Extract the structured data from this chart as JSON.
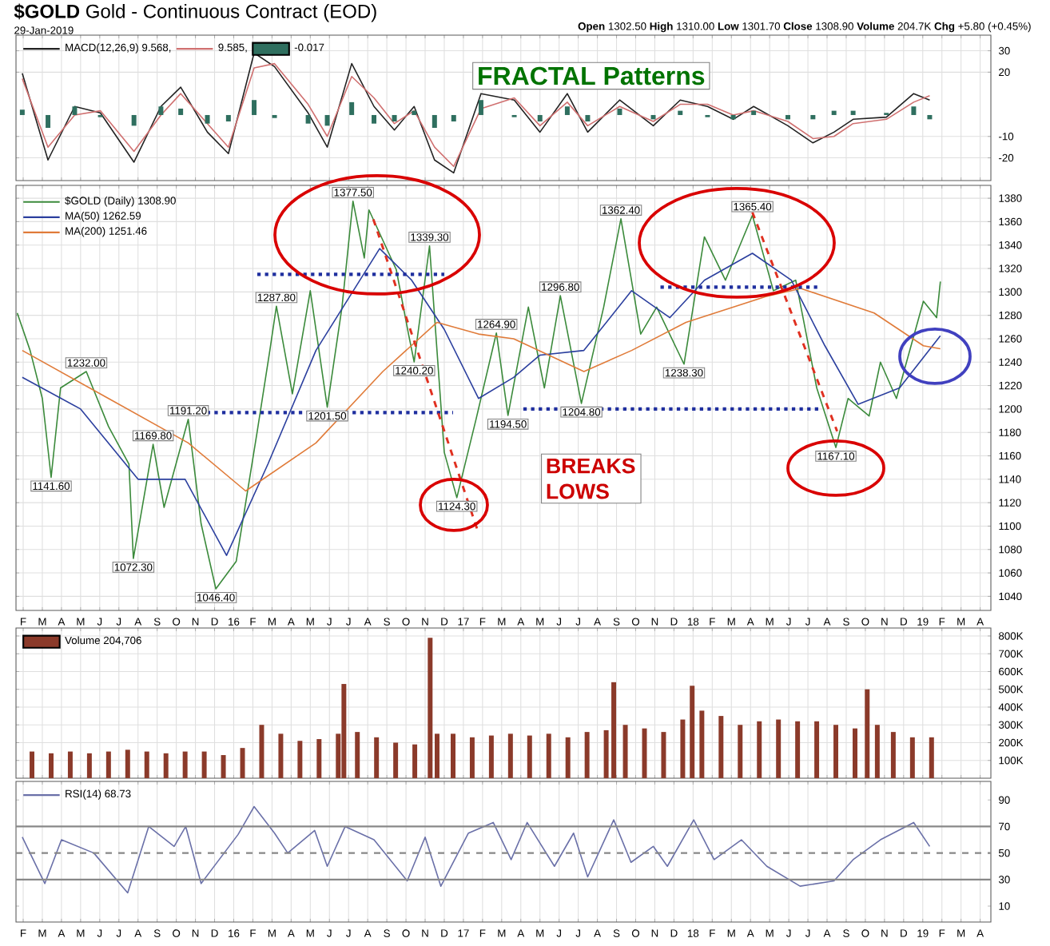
{
  "chart_data": [
    {
      "type": "line",
      "title": "**$GOLD** Gold - Continuous Contract (EOD)",
      "subtitle": "29-Jan-2019",
      "annotations": [
        "FRACTAL Patterns",
        "**Open** 1302.50 **High** 1310.00 **Low** 1301.70 **Close** 1308.90 **Volume** 204.7K **Chg** +5.80 (+0.45%)"
      ],
      "xlim": [
        "2015-01-20",
        "2019-04-18"
      ],
      "ylim": [
        -30.6,
        37.3
      ],
      "yticks": [
        30,
        20,
        -10,
        -20
      ],
      "grid": true,
      "legend": "top left",
      "tick_labels": "y",
      "xticks": [
        "2015-02",
        "2015-03",
        "2015-04",
        "2015-05",
        "2015-06",
        "2015-07",
        "2015-08",
        "2015-09",
        "2015-10",
        "2015-11",
        "2015-12",
        "2016-01",
        "2016-02",
        "2016-03",
        "2016-04",
        "2016-05",
        "2016-06",
        "2016-07",
        "2016-08",
        "2016-09",
        "2016-10",
        "2016-11",
        "2016-12",
        "2017-01",
        "2017-02",
        "2017-03",
        "2017-04",
        "2017-05",
        "2017-06",
        "2017-07",
        "2017-08",
        "2017-09",
        "2017-10",
        "2017-11",
        "2017-12",
        "2018-01",
        "2018-02",
        "2018-03",
        "2018-04",
        "2018-05",
        "2018-06",
        "2018-07",
        "2018-08",
        "2018-09",
        "2018-10",
        "2018-11",
        "2018-12",
        "2019-01",
        "2019-02",
        "2019-03",
        "2019-04"
      ],
      "series": [
        {
          "name": "MACD(12,26,9) 9.568,",
          "color": "#222222",
          "x": [
            "2015-01-30",
            "2015-03-10",
            "2015-04-22",
            "2015-06-02",
            "2015-07-25",
            "2015-09-07",
            "2015-10-08",
            "2015-11-20",
            "2015-12-23",
            "2016-02-03",
            "2016-03-05",
            "2016-04-28",
            "2016-05-28",
            "2016-07-06",
            "2016-08-11",
            "2016-09-13",
            "2016-10-14",
            "2016-11-16",
            "2016-12-16",
            "2017-01-29",
            "2017-03-21",
            "2017-05-01",
            "2017-06-14",
            "2017-07-16",
            "2017-09-06",
            "2017-10-29",
            "2017-12-11",
            "2018-01-24",
            "2018-03-04",
            "2018-04-06",
            "2018-05-30",
            "2018-07-09",
            "2018-08-12",
            "2018-09-12",
            "2018-11-04",
            "2018-12-17",
            "2019-01-12"
          ],
          "values": [
            19.5,
            -21,
            4,
            1,
            -22,
            4,
            13,
            -8,
            -18,
            29,
            22.6,
            1,
            -15,
            24,
            4,
            -7,
            4,
            -21,
            -27,
            10,
            7,
            -8,
            10,
            -8,
            7,
            -5,
            7,
            4,
            -2,
            4,
            -5,
            -13,
            -8,
            -2,
            -1,
            10,
            7
          ]
        },
        {
          "name": "9.585,",
          "color": "#d07070",
          "x": [
            "2015-01-30",
            "2015-03-10",
            "2015-04-22",
            "2015-06-02",
            "2015-07-25",
            "2015-09-07",
            "2015-10-08",
            "2015-11-20",
            "2015-12-23",
            "2016-02-03",
            "2016-03-05",
            "2016-04-28",
            "2016-05-28",
            "2016-07-06",
            "2016-08-11",
            "2016-09-13",
            "2016-10-14",
            "2016-11-16",
            "2016-12-16",
            "2017-01-29",
            "2017-03-21",
            "2017-05-01",
            "2017-06-14",
            "2017-07-16",
            "2017-09-06",
            "2017-10-29",
            "2017-12-11",
            "2018-01-24",
            "2018-03-04",
            "2018-04-06",
            "2018-05-30",
            "2018-07-09",
            "2018-08-12",
            "2018-09-12",
            "2018-11-04",
            "2018-12-17",
            "2019-01-12"
          ],
          "values": [
            17,
            -15,
            0,
            2,
            -17,
            0,
            10,
            -4,
            -15,
            22,
            24,
            5,
            -10,
            18,
            8,
            -4,
            2,
            -15,
            -24,
            3,
            8,
            -5,
            6,
            -5,
            4,
            -3,
            5,
            5,
            0,
            2,
            -3,
            -11,
            -10,
            -4,
            -2,
            6,
            9
          ]
        },
        {
          "name": "-0.017",
          "type": "bar",
          "color": "#2f6f5f",
          "x": [
            "2015-01-30",
            "2015-03-10",
            "2015-04-22",
            "2015-06-02",
            "2015-07-25",
            "2015-09-07",
            "2015-10-08",
            "2015-11-20",
            "2015-12-23",
            "2016-02-03",
            "2016-03-05",
            "2016-04-28",
            "2016-05-28",
            "2016-07-06",
            "2016-08-11",
            "2016-09-13",
            "2016-10-14",
            "2016-11-16",
            "2016-12-16",
            "2017-01-29",
            "2017-03-21",
            "2017-05-01",
            "2017-06-14",
            "2017-07-16",
            "2017-09-06",
            "2017-10-29",
            "2017-12-11",
            "2018-01-24",
            "2018-03-04",
            "2018-04-06",
            "2018-05-30",
            "2018-07-09",
            "2018-08-12",
            "2018-09-12",
            "2018-11-04",
            "2018-12-17",
            "2019-01-12"
          ],
          "values": [
            2.5,
            -6,
            4,
            -1,
            -5,
            4,
            3,
            -4,
            -3,
            7,
            -1.4,
            -4,
            -5,
            6,
            -4,
            -3,
            2,
            -6,
            -3,
            7,
            -1,
            -3,
            4,
            -3,
            3,
            -2,
            2,
            -1,
            -2,
            2,
            -2,
            -2,
            2,
            2,
            1,
            4,
            -2
          ]
        }
      ]
    },
    {
      "type": "line",
      "xlim": [
        "2015-01-20",
        "2019-04-18"
      ],
      "ylim": [
        1028,
        1391
      ],
      "grid": true,
      "legend": "top left",
      "yticks": [
        1040,
        1060,
        1080,
        1100,
        1120,
        1140,
        1160,
        1180,
        1200,
        1220,
        1240,
        1260,
        1280,
        1300,
        1320,
        1340,
        1360,
        1380
      ],
      "xticks": [
        {
          "value": "2015-02",
          "label": "F"
        },
        {
          "value": "2015-03",
          "label": "M"
        },
        {
          "value": "2015-04",
          "label": "A"
        },
        {
          "value": "2015-05",
          "label": "M"
        },
        {
          "value": "2015-06",
          "label": "J"
        },
        {
          "value": "2015-07",
          "label": "J"
        },
        {
          "value": "2015-08",
          "label": "A"
        },
        {
          "value": "2015-09",
          "label": "S"
        },
        {
          "value": "2015-10",
          "label": "O"
        },
        {
          "value": "2015-11",
          "label": "N"
        },
        {
          "value": "2015-12",
          "label": "D"
        },
        {
          "value": "2016-01",
          "label": "16"
        },
        {
          "value": "2016-02",
          "label": "F"
        },
        {
          "value": "2016-03",
          "label": "M"
        },
        {
          "value": "2016-04",
          "label": "A"
        },
        {
          "value": "2016-05",
          "label": "M"
        },
        {
          "value": "2016-06",
          "label": "J"
        },
        {
          "value": "2016-07",
          "label": "J"
        },
        {
          "value": "2016-08",
          "label": "A"
        },
        {
          "value": "2016-09",
          "label": "S"
        },
        {
          "value": "2016-10",
          "label": "O"
        },
        {
          "value": "2016-11",
          "label": "N"
        },
        {
          "value": "2016-12",
          "label": "D"
        },
        {
          "value": "2017-01",
          "label": "17"
        },
        {
          "value": "2017-02",
          "label": "F"
        },
        {
          "value": "2017-03",
          "label": "M"
        },
        {
          "value": "2017-04",
          "label": "A"
        },
        {
          "value": "2017-05",
          "label": "M"
        },
        {
          "value": "2017-06",
          "label": "J"
        },
        {
          "value": "2017-07",
          "label": "J"
        },
        {
          "value": "2017-08",
          "label": "A"
        },
        {
          "value": "2017-09",
          "label": "S"
        },
        {
          "value": "2017-10",
          "label": "O"
        },
        {
          "value": "2017-11",
          "label": "N"
        },
        {
          "value": "2017-12",
          "label": "D"
        },
        {
          "value": "2018-01",
          "label": "18"
        },
        {
          "value": "2018-02",
          "label": "F"
        },
        {
          "value": "2018-03",
          "label": "M"
        },
        {
          "value": "2018-04",
          "label": "A"
        },
        {
          "value": "2018-05",
          "label": "M"
        },
        {
          "value": "2018-06",
          "label": "J"
        },
        {
          "value": "2018-07",
          "label": "J"
        },
        {
          "value": "2018-08",
          "label": "A"
        },
        {
          "value": "2018-09",
          "label": "S"
        },
        {
          "value": "2018-10",
          "label": "O"
        },
        {
          "value": "2018-11",
          "label": "N"
        },
        {
          "value": "2018-12",
          "label": "D"
        },
        {
          "value": "2019-01",
          "label": "19"
        },
        {
          "value": "2019-02",
          "label": "F"
        },
        {
          "value": "2019-03",
          "label": "M"
        },
        {
          "value": "2019-04",
          "label": "A"
        }
      ],
      "series": [
        {
          "name": "$GOLD (Daily) 1308.90",
          "color": "#3b8a3b",
          "x": [
            "2015-01-22",
            "2015-02-12",
            "2015-03-01",
            "2015-03-15",
            "2015-03-30",
            "2015-05-10",
            "2015-06-15",
            "2015-07-17",
            "2015-07-24",
            "2015-08-25",
            "2015-09-12",
            "2015-10-20",
            "2015-11-10",
            "2015-12-03",
            "2016-01-05",
            "2016-02-08",
            "2016-02-28",
            "2016-03-08",
            "2016-04-03",
            "2016-05-01",
            "2016-05-28",
            "2016-06-21",
            "2016-07-08",
            "2016-07-26",
            "2016-08-03",
            "2016-09-16",
            "2016-10-05",
            "2016-10-14",
            "2016-11-08",
            "2016-12-01",
            "2016-12-21",
            "2017-01-21",
            "2017-02-23",
            "2017-03-11",
            "2017-04-13",
            "2017-05-08",
            "2017-06-03",
            "2017-07-06",
            "2017-08-11",
            "2017-09-08",
            "2017-10-09",
            "2017-11-04",
            "2017-12-17",
            "2018-01-19",
            "2018-02-22",
            "2018-04-04",
            "2018-05-07",
            "2018-06-12",
            "2018-07-15",
            "2018-08-15",
            "2018-09-04",
            "2018-10-07",
            "2018-10-25",
            "2018-11-20",
            "2019-01-02",
            "2019-01-23",
            "2019-01-29"
          ],
          "values": [
            1282,
            1250,
            1209,
            1141.6,
            1218,
            1232,
            1185,
            1153,
            1072.3,
            1169.8,
            1116,
            1191.2,
            1102,
            1046.4,
            1070,
            1181,
            1250,
            1287.8,
            1213,
            1301,
            1201.5,
            1287,
            1377.5,
            1329,
            1370,
            1319,
            1264,
            1240.2,
            1339.3,
            1163,
            1124.3,
            1191,
            1264.9,
            1194.5,
            1287,
            1218,
            1296.8,
            1204.8,
            1287,
            1362.4,
            1264,
            1287,
            1238.3,
            1347,
            1310,
            1365.4,
            1301,
            1310,
            1218,
            1167.1,
            1209,
            1194,
            1240,
            1209,
            1292,
            1278,
            1308.9
          ]
        },
        {
          "name": "MA(50) 1262.59",
          "color": "#2b3f9e",
          "x": [
            "2015-01-30",
            "2015-05-01",
            "2015-08-01",
            "2015-10-15",
            "2015-12-20",
            "2016-02-25",
            "2016-05-10",
            "2016-08-20",
            "2016-10-10",
            "2016-12-01",
            "2017-01-25",
            "2017-03-20",
            "2017-05-01",
            "2017-07-10",
            "2017-09-25",
            "2017-11-25",
            "2018-01-19",
            "2018-04-04",
            "2018-06-05",
            "2018-07-28",
            "2018-09-20",
            "2018-11-25",
            "2019-01-29"
          ],
          "values": [
            1227,
            1200,
            1140,
            1140,
            1075,
            1153,
            1250,
            1337,
            1310,
            1268,
            1209,
            1227,
            1246,
            1250,
            1301,
            1278,
            1310,
            1333,
            1310,
            1254,
            1204,
            1218,
            1262.59
          ]
        },
        {
          "name": "MA(200) 1251.46",
          "color": "#e07b39",
          "x": [
            "2015-01-30",
            "2015-06-15",
            "2015-10-20",
            "2016-01-20",
            "2016-05-10",
            "2016-08-25",
            "2016-11-20",
            "2017-01-25",
            "2017-03-20",
            "2017-07-10",
            "2017-09-25",
            "2017-12-20",
            "2018-04-25",
            "2018-06-20",
            "2018-10-15",
            "2019-01-02",
            "2019-01-29"
          ],
          "values": [
            1250,
            1209,
            1171,
            1130,
            1171,
            1232,
            1274,
            1264,
            1260,
            1232,
            1250,
            1274,
            1296,
            1303,
            1282,
            1254,
            1251.46
          ]
        },
        {
          "type": "line",
          "line_style": "dotted",
          "color": "#1f2f9f",
          "x": [
            "2016-02-08",
            "2016-12-01"
          ],
          "values": [
            1315,
            1315
          ]
        },
        {
          "type": "line",
          "line_style": "dotted",
          "color": "#1f2f9f",
          "x": [
            "2015-10-25",
            "2016-12-15"
          ],
          "values": [
            1197,
            1197
          ]
        },
        {
          "type": "line",
          "line_style": "dotted",
          "color": "#1f2f9f",
          "x": [
            "2017-04-05",
            "2018-07-20"
          ],
          "values": [
            1200,
            1200
          ]
        },
        {
          "type": "line",
          "line_style": "dotted",
          "color": "#1f2f9f",
          "x": [
            "2017-11-10",
            "2018-07-20"
          ],
          "values": [
            1304,
            1304
          ]
        },
        {
          "type": "line",
          "line_style": "dashed",
          "color": "#e03020",
          "x": [
            "2016-08-10",
            "2017-01-25"
          ],
          "values": [
            1362,
            1094
          ]
        },
        {
          "type": "line",
          "line_style": "dashed",
          "color": "#e03020",
          "x": [
            "2018-04-04",
            "2018-08-17"
          ],
          "values": [
            1368,
            1181
          ]
        }
      ],
      "annotations": [
        "BREAKS LOWS",
        {
          "text": "1141.60",
          "x": "2015-03-15",
          "y": 1141.6
        },
        {
          "text": "1232.00",
          "x": "2015-05-10",
          "y": 1232
        },
        {
          "text": "1072.30",
          "x": "2015-07-24",
          "y": 1072.3
        },
        {
          "text": "1169.80",
          "x": "2015-08-25",
          "y": 1169.8
        },
        {
          "text": "1191.20",
          "x": "2015-10-20",
          "y": 1191.2
        },
        {
          "text": "1046.40",
          "x": "2015-12-03",
          "y": 1046.4
        },
        {
          "text": "1287.80",
          "x": "2016-03-08",
          "y": 1287.8
        },
        {
          "text": "1201.50",
          "x": "2016-05-28",
          "y": 1201.5
        },
        {
          "text": "1377.50",
          "x": "2016-07-08",
          "y": 1377.5
        },
        {
          "text": "1240.20",
          "x": "2016-10-14",
          "y": 1240.2
        },
        {
          "text": "1339.30",
          "x": "2016-11-08",
          "y": 1339.3
        },
        {
          "text": "1124.30",
          "x": "2016-12-21",
          "y": 1124.3
        },
        {
          "text": "1264.90",
          "x": "2017-02-23",
          "y": 1264.9
        },
        {
          "text": "1194.50",
          "x": "2017-03-11",
          "y": 1194.5
        },
        {
          "text": "1296.80",
          "x": "2017-06-03",
          "y": 1296.8
        },
        {
          "text": "1204.80",
          "x": "2017-07-06",
          "y": 1204.8
        },
        {
          "text": "1362.40",
          "x": "2017-09-08",
          "y": 1362.4
        },
        {
          "text": "1238.30",
          "x": "2017-12-17",
          "y": 1238.3
        },
        {
          "text": "1365.40",
          "x": "2018-04-04",
          "y": 1365.4
        },
        {
          "text": "1167.10",
          "x": "2018-08-15",
          "y": 1167.1
        }
      ]
    },
    {
      "type": "line",
      "xlim": [
        "2015-01-20",
        "2019-04-18"
      ],
      "ylim": [
        0,
        845000
      ],
      "grid": true,
      "legend": "top left",
      "tick_labels": "y",
      "x": [
        "2015-02-15",
        "2015-03-15",
        "2015-04-15",
        "2015-05-15",
        "2015-06-15",
        "2015-07-15",
        "2015-08-15",
        "2015-09-15",
        "2015-10-15",
        "2015-11-15",
        "2015-12-15",
        "2016-01-15",
        "2016-02-15",
        "2016-03-15",
        "2016-04-15",
        "2016-05-15",
        "2016-06-15",
        "2016-06-24",
        "2016-07-15",
        "2016-08-15",
        "2016-09-15",
        "2016-10-15",
        "2016-11-09",
        "2016-11-20",
        "2016-12-15",
        "2017-01-15",
        "2017-02-15",
        "2017-03-15",
        "2017-04-15",
        "2017-05-15",
        "2017-06-15",
        "2017-07-15",
        "2017-08-15",
        "2017-08-27",
        "2017-09-15",
        "2017-10-15",
        "2017-11-15",
        "2017-12-15",
        "2017-12-30",
        "2018-01-15",
        "2018-02-15",
        "2018-03-15",
        "2018-04-15",
        "2018-05-15",
        "2018-06-15",
        "2018-07-15",
        "2018-08-15",
        "2018-09-15",
        "2018-10-04",
        "2018-10-20",
        "2018-11-15",
        "2018-12-15",
        "2019-01-15"
      ],
      "yticks": [
        {
          "value": 100000,
          "label": "100K"
        },
        {
          "value": 200000,
          "label": "200K"
        },
        {
          "value": 300000,
          "label": "300K"
        },
        {
          "value": 400000,
          "label": "400K"
        },
        {
          "value": 500000,
          "label": "500K"
        },
        {
          "value": 600000,
          "label": "600K"
        },
        {
          "value": 700000,
          "label": "700K"
        },
        {
          "value": 800000,
          "label": "800K"
        }
      ],
      "xticks": [
        "2015-02",
        "2015-03",
        "2015-04",
        "2015-05",
        "2015-06",
        "2015-07",
        "2015-08",
        "2015-09",
        "2015-10",
        "2015-11",
        "2015-12",
        "2016-01",
        "2016-02",
        "2016-03",
        "2016-04",
        "2016-05",
        "2016-06",
        "2016-07",
        "2016-08",
        "2016-09",
        "2016-10",
        "2016-11",
        "2016-12",
        "2017-01",
        "2017-02",
        "2017-03",
        "2017-04",
        "2017-05",
        "2017-06",
        "2017-07",
        "2017-08",
        "2017-09",
        "2017-10",
        "2017-11",
        "2017-12",
        "2018-01",
        "2018-02",
        "2018-03",
        "2018-04",
        "2018-05",
        "2018-06",
        "2018-07",
        "2018-08",
        "2018-09",
        "2018-10",
        "2018-11",
        "2018-12",
        "2019-01",
        "2019-02",
        "2019-03",
        "2019-04"
      ],
      "series": [
        {
          "name": "Volume 204,706",
          "type": "bar",
          "color": "#8b3a2a",
          "values": [
            150000,
            140000,
            150000,
            140000,
            150000,
            160000,
            150000,
            140000,
            150000,
            150000,
            130000,
            170000,
            300000,
            250000,
            210000,
            220000,
            250000,
            530000,
            260000,
            230000,
            200000,
            190000,
            790000,
            250000,
            250000,
            230000,
            240000,
            250000,
            240000,
            250000,
            230000,
            260000,
            270000,
            540000,
            300000,
            280000,
            260000,
            330000,
            520000,
            380000,
            350000,
            300000,
            320000,
            330000,
            320000,
            320000,
            300000,
            280000,
            500000,
            300000,
            260000,
            230000,
            230000
          ]
        }
      ]
    },
    {
      "type": "line",
      "xlim": [
        "2015-01-20",
        "2019-04-18"
      ],
      "ylim": [
        -2,
        104
      ],
      "grid": "x",
      "legend": "top left",
      "yticks": [
        10,
        30,
        50,
        70,
        90
      ],
      "ref_lines": [
        {
          "axis": "y",
          "value": 70,
          "color": "#888888",
          "line_style": "solid"
        },
        {
          "axis": "y",
          "value": 50,
          "color": "#888888",
          "line_style": "dashed"
        },
        {
          "axis": "y",
          "value": 30,
          "color": "#888888",
          "line_style": "solid"
        }
      ],
      "xticks": [
        {
          "value": "2015-02",
          "label": "F"
        },
        {
          "value": "2015-03",
          "label": "M"
        },
        {
          "value": "2015-04",
          "label": "A"
        },
        {
          "value": "2015-05",
          "label": "M"
        },
        {
          "value": "2015-06",
          "label": "J"
        },
        {
          "value": "2015-07",
          "label": "J"
        },
        {
          "value": "2015-08",
          "label": "A"
        },
        {
          "value": "2015-09",
          "label": "S"
        },
        {
          "value": "2015-10",
          "label": "O"
        },
        {
          "value": "2015-11",
          "label": "N"
        },
        {
          "value": "2015-12",
          "label": "D"
        },
        {
          "value": "2016-01",
          "label": "16"
        },
        {
          "value": "2016-02",
          "label": "F"
        },
        {
          "value": "2016-03",
          "label": "M"
        },
        {
          "value": "2016-04",
          "label": "A"
        },
        {
          "value": "2016-05",
          "label": "M"
        },
        {
          "value": "2016-06",
          "label": "J"
        },
        {
          "value": "2016-07",
          "label": "J"
        },
        {
          "value": "2016-08",
          "label": "A"
        },
        {
          "value": "2016-09",
          "label": "S"
        },
        {
          "value": "2016-10",
          "label": "O"
        },
        {
          "value": "2016-11",
          "label": "N"
        },
        {
          "value": "2016-12",
          "label": "D"
        },
        {
          "value": "2017-01",
          "label": "17"
        },
        {
          "value": "2017-02",
          "label": "F"
        },
        {
          "value": "2017-03",
          "label": "M"
        },
        {
          "value": "2017-04",
          "label": "A"
        },
        {
          "value": "2017-05",
          "label": "M"
        },
        {
          "value": "2017-06",
          "label": "J"
        },
        {
          "value": "2017-07",
          "label": "J"
        },
        {
          "value": "2017-08",
          "label": "A"
        },
        {
          "value": "2017-09",
          "label": "S"
        },
        {
          "value": "2017-10",
          "label": "O"
        },
        {
          "value": "2017-11",
          "label": "N"
        },
        {
          "value": "2017-12",
          "label": "D"
        },
        {
          "value": "2018-01",
          "label": "18"
        },
        {
          "value": "2018-02",
          "label": "F"
        },
        {
          "value": "2018-03",
          "label": "M"
        },
        {
          "value": "2018-04",
          "label": "A"
        },
        {
          "value": "2018-05",
          "label": "M"
        },
        {
          "value": "2018-06",
          "label": "J"
        },
        {
          "value": "2018-07",
          "label": "J"
        },
        {
          "value": "2018-08",
          "label": "A"
        },
        {
          "value": "2018-09",
          "label": "S"
        },
        {
          "value": "2018-10",
          "label": "O"
        },
        {
          "value": "2018-11",
          "label": "N"
        },
        {
          "value": "2018-12",
          "label": "D"
        },
        {
          "value": "2019-01",
          "label": "19"
        },
        {
          "value": "2019-02",
          "label": "F"
        },
        {
          "value": "2019-03",
          "label": "M"
        },
        {
          "value": "2019-04",
          "label": "A"
        }
      ],
      "series": [
        {
          "name": "RSI(14) 68.73",
          "color": "#6a70a8",
          "x": [
            "2015-01-30",
            "2015-03-05",
            "2015-04-01",
            "2015-05-22",
            "2015-07-15",
            "2015-08-18",
            "2015-09-28",
            "2015-10-16",
            "2015-11-10",
            "2016-01-08",
            "2016-02-03",
            "2016-03-05",
            "2016-03-26",
            "2016-05-08",
            "2016-05-28",
            "2016-06-26",
            "2016-08-11",
            "2016-10-03",
            "2016-11-01",
            "2016-11-26",
            "2017-01-09",
            "2017-02-18",
            "2017-03-16",
            "2017-04-11",
            "2017-05-24",
            "2017-06-24",
            "2017-07-16",
            "2017-08-27",
            "2017-09-24",
            "2017-10-29",
            "2017-11-21",
            "2018-01-02",
            "2018-02-04",
            "2018-03-17",
            "2018-04-27",
            "2018-06-19",
            "2018-08-12",
            "2018-09-12",
            "2018-10-25",
            "2018-12-17",
            "2019-01-12"
          ],
          "values": [
            62,
            27,
            60,
            50,
            20,
            70,
            55,
            70,
            27,
            64,
            85,
            65,
            50,
            67,
            40,
            70,
            60,
            29,
            62,
            25,
            65,
            73,
            45,
            73,
            40,
            65,
            32,
            75,
            43,
            55,
            40,
            75,
            45,
            60,
            40,
            25,
            29,
            45,
            60,
            73,
            55
          ]
        }
      ]
    }
  ]
}
